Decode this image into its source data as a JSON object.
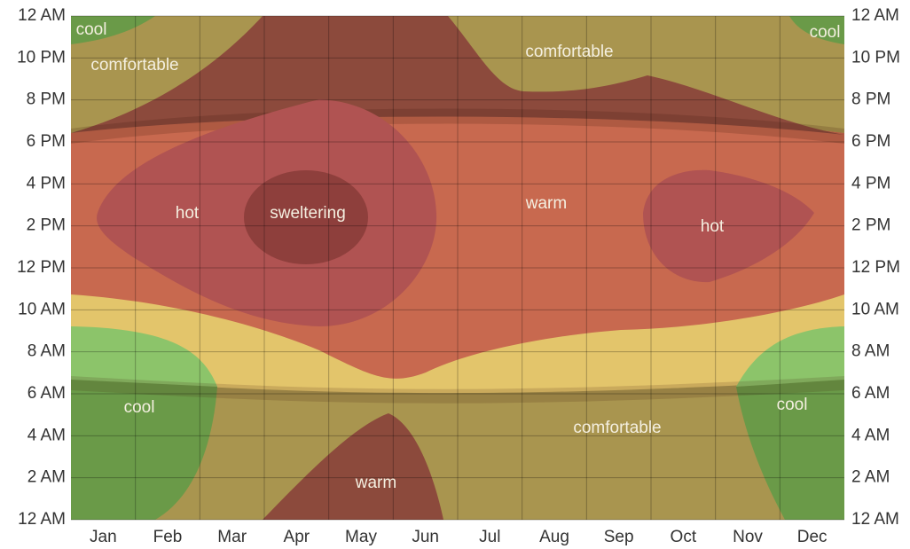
{
  "chart_data": {
    "type": "heatmap",
    "categories": [
      "Jan",
      "Feb",
      "Mar",
      "Apr",
      "May",
      "Jun",
      "Jul",
      "Aug",
      "Sep",
      "Oct",
      "Nov",
      "Dec"
    ],
    "ylim": [
      0,
      24
    ],
    "yticks": [
      {
        "value": 0,
        "label": "12 AM"
      },
      {
        "value": 2,
        "label": "2 AM"
      },
      {
        "value": 4,
        "label": "4 AM"
      },
      {
        "value": 6,
        "label": "6 AM"
      },
      {
        "value": 8,
        "label": "8 AM"
      },
      {
        "value": 10,
        "label": "10 AM"
      },
      {
        "value": 12,
        "label": "12 PM"
      },
      {
        "value": 14,
        "label": "2 PM"
      },
      {
        "value": 16,
        "label": "4 PM"
      },
      {
        "value": 18,
        "label": "6 PM"
      },
      {
        "value": 20,
        "label": "8 PM"
      },
      {
        "value": 22,
        "label": "10 PM"
      },
      {
        "value": 24,
        "label": "12 AM"
      }
    ],
    "grid": true,
    "annotations": [
      "cool",
      "comfortable",
      "comfortable",
      "cool",
      "hot",
      "sweltering",
      "warm",
      "hot",
      "cool",
      "cool",
      "comfortable",
      "warm"
    ]
  }
}
